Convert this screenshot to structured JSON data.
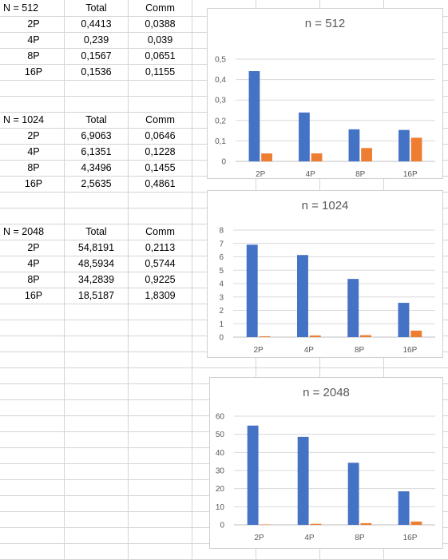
{
  "tables": [
    {
      "header": {
        "label": "N = 512",
        "total": "Total",
        "comm": "Comm"
      },
      "rows": [
        {
          "label": "2P",
          "total": "0,4413",
          "comm": "0,0388"
        },
        {
          "label": "4P",
          "total": "0,239",
          "comm": "0,039"
        },
        {
          "label": "8P",
          "total": "0,1567",
          "comm": "0,0651"
        },
        {
          "label": "16P",
          "total": "0,1536",
          "comm": "0,1155"
        }
      ]
    },
    {
      "header": {
        "label": "N = 1024",
        "total": "Total",
        "comm": "Comm"
      },
      "rows": [
        {
          "label": "2P",
          "total": "6,9063",
          "comm": "0,0646"
        },
        {
          "label": "4P",
          "total": "6,1351",
          "comm": "0,1228"
        },
        {
          "label": "8P",
          "total": "4,3496",
          "comm": "0,1455"
        },
        {
          "label": "16P",
          "total": "2,5635",
          "comm": "0,4861"
        }
      ]
    },
    {
      "header": {
        "label": "N = 2048",
        "total": "Total",
        "comm": "Comm"
      },
      "rows": [
        {
          "label": "2P",
          "total": "54,8191",
          "comm": "0,2113"
        },
        {
          "label": "4P",
          "total": "48,5934",
          "comm": "0,5744"
        },
        {
          "label": "8P",
          "total": "34,2839",
          "comm": "0,9225"
        },
        {
          "label": "16P",
          "total": "18,5187",
          "comm": "1,8309"
        }
      ]
    }
  ],
  "colors": {
    "total": "#4472c4",
    "comm": "#ed7d31",
    "gridline": "#d9d9d9",
    "axis_text": "#595959"
  },
  "chart_data": [
    {
      "type": "bar",
      "title": "n = 512",
      "categories": [
        "2P",
        "4P",
        "8P",
        "16P"
      ],
      "series": [
        {
          "values": [
            0.4413,
            0.239,
            0.1567,
            0.1536
          ]
        },
        {
          "values": [
            0.0388,
            0.039,
            0.0651,
            0.1155
          ]
        }
      ],
      "ylim": [
        0,
        0.5
      ],
      "yticks": [
        0,
        0.1,
        0.2,
        0.3,
        0.4,
        0.5
      ],
      "ytick_labels": [
        "0",
        "0,1",
        "0,2",
        "0,3",
        "0,4",
        "0,5"
      ],
      "grid": true,
      "legend": "none"
    },
    {
      "type": "bar",
      "title": "n = 1024",
      "categories": [
        "2P",
        "4P",
        "8P",
        "16P"
      ],
      "series": [
        {
          "values": [
            6.9063,
            6.1351,
            4.3496,
            2.5635
          ]
        },
        {
          "values": [
            0.0646,
            0.1228,
            0.1455,
            0.4861
          ]
        }
      ],
      "ylim": [
        0,
        8
      ],
      "yticks": [
        0,
        1,
        2,
        3,
        4,
        5,
        6,
        7,
        8
      ],
      "ytick_labels": [
        "0",
        "1",
        "2",
        "3",
        "4",
        "5",
        "6",
        "7",
        "8"
      ],
      "grid": true,
      "legend": "none"
    },
    {
      "type": "bar",
      "title": "n = 2048",
      "categories": [
        "2P",
        "4P",
        "8P",
        "16P"
      ],
      "series": [
        {
          "values": [
            54.8191,
            48.5934,
            34.2839,
            18.5187
          ]
        },
        {
          "values": [
            0.2113,
            0.5744,
            0.9225,
            1.8309
          ]
        }
      ],
      "ylim": [
        0,
        60
      ],
      "yticks": [
        0,
        10,
        20,
        30,
        40,
        50,
        60
      ],
      "ytick_labels": [
        "0",
        "10",
        "20",
        "30",
        "40",
        "50",
        "60"
      ],
      "grid": true,
      "legend": "none"
    }
  ]
}
